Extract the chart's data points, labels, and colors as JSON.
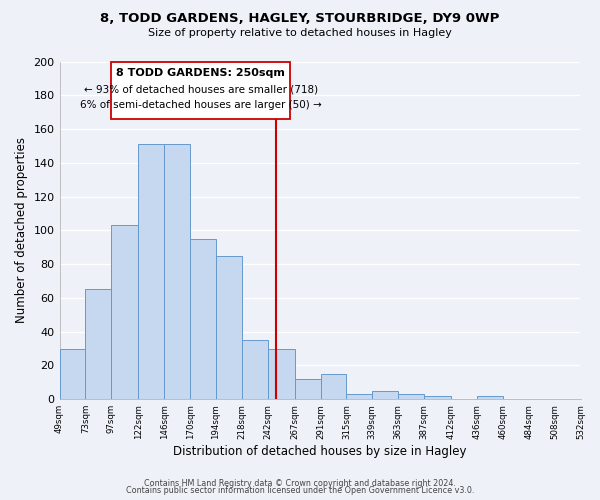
{
  "title": "8, TODD GARDENS, HAGLEY, STOURBRIDGE, DY9 0WP",
  "subtitle": "Size of property relative to detached houses in Hagley",
  "xlabel": "Distribution of detached houses by size in Hagley",
  "ylabel": "Number of detached properties",
  "bar_color": "#c5d8ef",
  "bar_edge_color": "#6699cc",
  "bins": [
    49,
    73,
    97,
    122,
    146,
    170,
    194,
    218,
    242,
    267,
    291,
    315,
    339,
    363,
    387,
    412,
    436,
    460,
    484,
    508,
    532
  ],
  "counts": [
    30,
    65,
    103,
    151,
    151,
    95,
    85,
    35,
    30,
    12,
    15,
    3,
    5,
    3,
    2,
    0,
    2,
    0,
    0,
    0
  ],
  "tick_labels": [
    "49sqm",
    "73sqm",
    "97sqm",
    "122sqm",
    "146sqm",
    "170sqm",
    "194sqm",
    "218sqm",
    "242sqm",
    "267sqm",
    "291sqm",
    "315sqm",
    "339sqm",
    "363sqm",
    "387sqm",
    "412sqm",
    "436sqm",
    "460sqm",
    "484sqm",
    "508sqm",
    "532sqm"
  ],
  "vline_x": 250,
  "vline_color": "#cc0000",
  "annotation_title": "8 TODD GARDENS: 250sqm",
  "annotation_line1": "← 93% of detached houses are smaller (718)",
  "annotation_line2": "6% of semi-detached houses are larger (50) →",
  "ylim": [
    0,
    200
  ],
  "yticks": [
    0,
    20,
    40,
    60,
    80,
    100,
    120,
    140,
    160,
    180,
    200
  ],
  "footer1": "Contains HM Land Registry data © Crown copyright and database right 2024.",
  "footer2": "Contains public sector information licensed under the Open Government Licence v3.0.",
  "background_color": "#eef2f8",
  "grid_color": "#ffffff"
}
